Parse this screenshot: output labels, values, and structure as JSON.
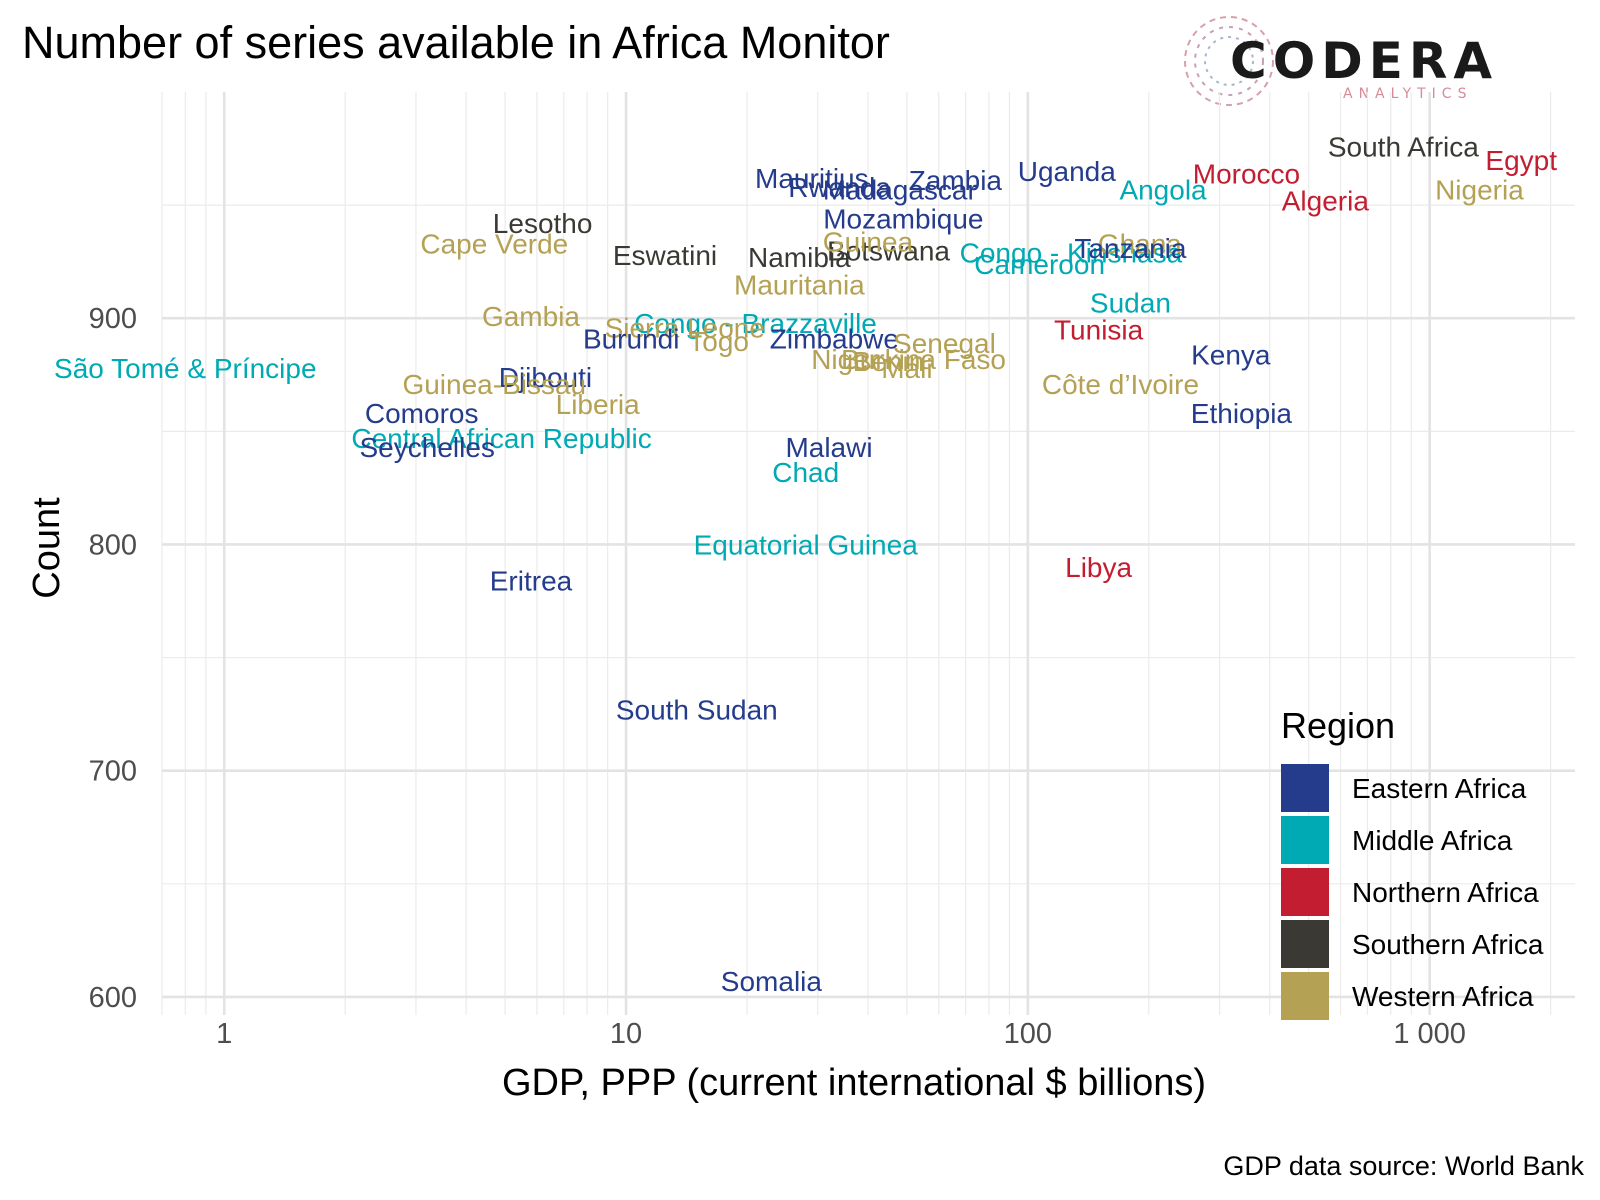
{
  "chart_data": {
    "type": "scatter",
    "title": "Number of series available in Africa Monitor",
    "xlabel": "GDP, PPP (current international $ billions)",
    "ylabel": "Count",
    "x_scale": "log10",
    "xlim": [
      0.7,
      2300
    ],
    "ylim": [
      592,
      1000
    ],
    "x_ticks": [
      {
        "value": 1,
        "label": "1"
      },
      {
        "value": 10,
        "label": "10"
      },
      {
        "value": 100,
        "label": "100"
      },
      {
        "value": 1000,
        "label": "1 000"
      }
    ],
    "y_ticks": [
      {
        "value": 600,
        "label": "600"
      },
      {
        "value": 700,
        "label": "700"
      },
      {
        "value": 800,
        "label": "800"
      },
      {
        "value": 900,
        "label": "900"
      }
    ],
    "grid": true,
    "legend": {
      "title": "Region",
      "placement": "bottom-right",
      "entries": [
        {
          "name": "Eastern Africa",
          "color": "#253b8c"
        },
        {
          "name": "Middle Africa",
          "color": "#00aab4"
        },
        {
          "name": "Northern Africa",
          "color": "#c31d31"
        },
        {
          "name": "Southern Africa",
          "color": "#3a3934"
        },
        {
          "name": "Western Africa",
          "color": "#b4a154"
        }
      ]
    },
    "caption": "GDP data source: World Bank",
    "points": [
      {
        "label": "South Africa",
        "region": "Southern Africa",
        "x": 860,
        "y": 976
      },
      {
        "label": "Egypt",
        "region": "Northern Africa",
        "x": 1690,
        "y": 970
      },
      {
        "label": "Morocco",
        "region": "Northern Africa",
        "x": 350,
        "y": 964
      },
      {
        "label": "Nigeria",
        "region": "Western Africa",
        "x": 1330,
        "y": 957
      },
      {
        "label": "Algeria",
        "region": "Northern Africa",
        "x": 550,
        "y": 952
      },
      {
        "label": "Angola",
        "region": "Middle Africa",
        "x": 217,
        "y": 957
      },
      {
        "label": "Uganda",
        "region": "Eastern Africa",
        "x": 125,
        "y": 965
      },
      {
        "label": "Zambia",
        "region": "Eastern Africa",
        "x": 66,
        "y": 961
      },
      {
        "label": "Mauritius",
        "region": "Eastern Africa",
        "x": 29,
        "y": 962
      },
      {
        "label": "Rwanda",
        "region": "Eastern Africa",
        "x": 34,
        "y": 958
      },
      {
        "label": "Madagascar",
        "region": "Eastern Africa",
        "x": 48,
        "y": 957
      },
      {
        "label": "Mozambique",
        "region": "Eastern Africa",
        "x": 49,
        "y": 944
      },
      {
        "label": "Lesotho",
        "region": "Southern Africa",
        "x": 6.2,
        "y": 942
      },
      {
        "label": "Cape Verde",
        "region": "Western Africa",
        "x": 4.7,
        "y": 933
      },
      {
        "label": "Eswatini",
        "region": "Southern Africa",
        "x": 12.5,
        "y": 928
      },
      {
        "label": "Namibia",
        "region": "Southern Africa",
        "x": 27,
        "y": 927
      },
      {
        "label": "Botswana",
        "region": "Southern Africa",
        "x": 45,
        "y": 930
      },
      {
        "label": "Guinea",
        "region": "Western Africa",
        "x": 40,
        "y": 934
      },
      {
        "label": "Congo - Kinshasa",
        "region": "Middle Africa",
        "x": 128,
        "y": 929
      },
      {
        "label": "Ghana",
        "region": "Western Africa",
        "x": 190,
        "y": 933
      },
      {
        "label": "Tanzania",
        "region": "Eastern Africa",
        "x": 180,
        "y": 931
      },
      {
        "label": "Cameroon",
        "region": "Middle Africa",
        "x": 107,
        "y": 924
      },
      {
        "label": "Mauritania",
        "region": "Western Africa",
        "x": 27,
        "y": 915
      },
      {
        "label": "Sudan",
        "region": "Middle Africa",
        "x": 180,
        "y": 907
      },
      {
        "label": "Gambia",
        "region": "Western Africa",
        "x": 5.8,
        "y": 901
      },
      {
        "label": "Congo - Brazzaville",
        "region": "Middle Africa",
        "x": 21,
        "y": 898
      },
      {
        "label": "Sierra Leone",
        "region": "Western Africa",
        "x": 14,
        "y": 896
      },
      {
        "label": "Tunisia",
        "region": "Northern Africa",
        "x": 150,
        "y": 895
      },
      {
        "label": "Burundi",
        "region": "Eastern Africa",
        "x": 10.3,
        "y": 891
      },
      {
        "label": "Togo",
        "region": "Western Africa",
        "x": 17,
        "y": 890
      },
      {
        "label": "Zimbabwe",
        "region": "Eastern Africa",
        "x": 33,
        "y": 891
      },
      {
        "label": "Senegal",
        "region": "Western Africa",
        "x": 62,
        "y": 889
      },
      {
        "label": "Kenya",
        "region": "Eastern Africa",
        "x": 320,
        "y": 884
      },
      {
        "label": "Niger",
        "region": "Western Africa",
        "x": 35,
        "y": 882
      },
      {
        "label": "Benin",
        "region": "Western Africa",
        "x": 45,
        "y": 881
      },
      {
        "label": "Burkina Faso",
        "region": "Western Africa",
        "x": 55,
        "y": 882
      },
      {
        "label": "Mali",
        "region": "Western Africa",
        "x": 50,
        "y": 878
      },
      {
        "label": "São Tomé & Príncipe",
        "region": "Middle Africa",
        "x": 0.8,
        "y": 878
      },
      {
        "label": "Djibouti",
        "region": "Eastern Africa",
        "x": 6.3,
        "y": 874
      },
      {
        "label": "Guinea-Bissau",
        "region": "Western Africa",
        "x": 4.7,
        "y": 871
      },
      {
        "label": "Côte d’Ivoire",
        "region": "Western Africa",
        "x": 170,
        "y": 871
      },
      {
        "label": "Liberia",
        "region": "Western Africa",
        "x": 8.5,
        "y": 862
      },
      {
        "label": "Comoros",
        "region": "Eastern Africa",
        "x": 3.1,
        "y": 858
      },
      {
        "label": "Ethiopia",
        "region": "Eastern Africa",
        "x": 340,
        "y": 858
      },
      {
        "label": "Central African Republic",
        "region": "Middle Africa",
        "x": 4.9,
        "y": 847
      },
      {
        "label": "Seychelles",
        "region": "Eastern Africa",
        "x": 3.2,
        "y": 843
      },
      {
        "label": "Malawi",
        "region": "Eastern Africa",
        "x": 32,
        "y": 843
      },
      {
        "label": "Chad",
        "region": "Middle Africa",
        "x": 28,
        "y": 832
      },
      {
        "label": "Equatorial Guinea",
        "region": "Middle Africa",
        "x": 28,
        "y": 800
      },
      {
        "label": "Libya",
        "region": "Northern Africa",
        "x": 150,
        "y": 790
      },
      {
        "label": "Eritrea",
        "region": "Eastern Africa",
        "x": 5.8,
        "y": 784
      },
      {
        "label": "South Sudan",
        "region": "Eastern Africa",
        "x": 15,
        "y": 727
      },
      {
        "label": "Somalia",
        "region": "Eastern Africa",
        "x": 23,
        "y": 607
      }
    ]
  },
  "logo": {
    "name": "CODERA",
    "subtitle": "ANALYTICS"
  }
}
